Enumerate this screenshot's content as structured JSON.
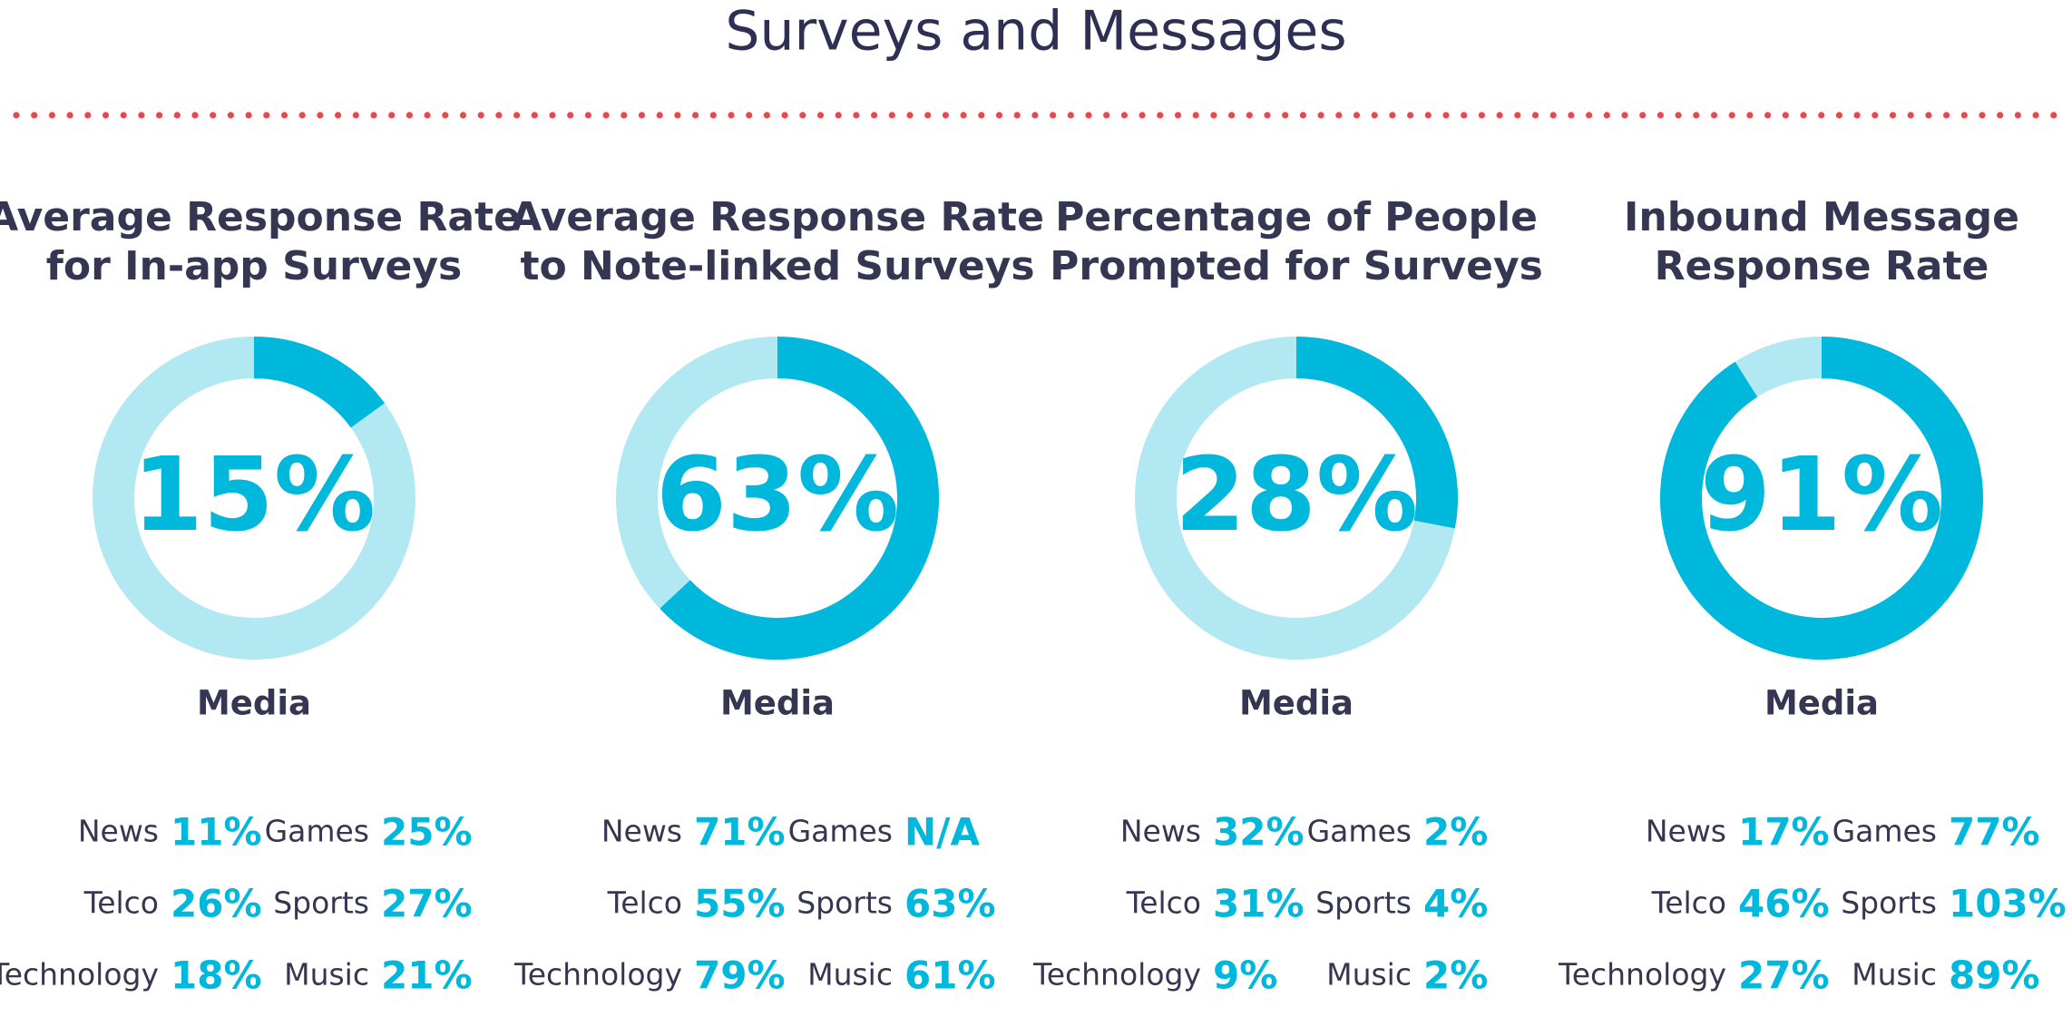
{
  "title": "Surveys and Messages",
  "chart_data": [
    {
      "type": "donut",
      "title": [
        "Average Response Rate",
        "for In-app Surveys"
      ],
      "value": 15,
      "value_label": "15%",
      "subtitle": "Media",
      "breakdown": [
        [
          "News",
          "11%"
        ],
        [
          "Games",
          "25%"
        ],
        [
          "Telco",
          "26%"
        ],
        [
          "Sports",
          "27%"
        ],
        [
          "Technology",
          "18%"
        ],
        [
          "Music",
          "21%"
        ]
      ]
    },
    {
      "type": "donut",
      "title": [
        "Average Response Rate",
        "to Note-linked Surveys"
      ],
      "value": 63,
      "value_label": "63%",
      "subtitle": "Media",
      "breakdown": [
        [
          "News",
          "71%"
        ],
        [
          "Games",
          "N/A"
        ],
        [
          "Telco",
          "55%"
        ],
        [
          "Sports",
          "63%"
        ],
        [
          "Technology",
          "79%"
        ],
        [
          "Music",
          "61%"
        ]
      ]
    },
    {
      "type": "donut",
      "title": [
        "Percentage of People",
        "Prompted for Surveys"
      ],
      "value": 28,
      "value_label": "28%",
      "subtitle": "Media",
      "breakdown": [
        [
          "News",
          "32%"
        ],
        [
          "Games",
          "2%"
        ],
        [
          "Telco",
          "31%"
        ],
        [
          "Sports",
          "4%"
        ],
        [
          "Technology",
          "9%"
        ],
        [
          "Music",
          "2%"
        ]
      ]
    },
    {
      "type": "donut",
      "title": [
        "Inbound Message",
        "Response Rate"
      ],
      "value": 91,
      "value_label": "91%",
      "subtitle": "Media",
      "breakdown": [
        [
          "News",
          "17%"
        ],
        [
          "Games",
          "77%"
        ],
        [
          "Telco",
          "46%"
        ],
        [
          "Sports",
          "103%"
        ],
        [
          "Technology",
          "27%"
        ],
        [
          "Music",
          "89%"
        ]
      ]
    }
  ]
}
